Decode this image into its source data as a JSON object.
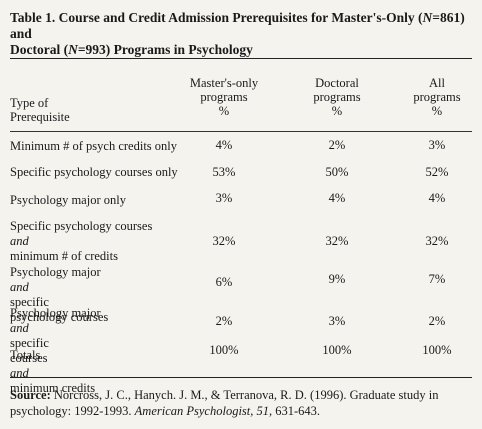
{
  "title": {
    "part1": "Table 1. Course and Credit Admission Prerequisites for Master's-Only (",
    "n_var1": "N",
    "part2": "=861) and",
    "part3": "Doctoral (",
    "n_var2": "N",
    "part4": "=993) Programs in Psychology"
  },
  "header": {
    "type_line1": "Type of",
    "type_line2": "Prerequisite",
    "col1": [
      "Master's-only",
      "programs",
      "%"
    ],
    "col2": [
      "Doctoral",
      "programs",
      "%"
    ],
    "col3": [
      "All",
      "programs",
      "%"
    ]
  },
  "rows": [
    {
      "label1": "Minimum # of psych credits only",
      "v1": "4%",
      "v2": "2%",
      "v3": "3%"
    },
    {
      "label1": "Specific psychology courses only",
      "v1": "53%",
      "v2": "50%",
      "v3": "52%"
    },
    {
      "label1": "Psychology major only",
      "v1": "3%",
      "v2": "4%",
      "v3": "4%"
    },
    {
      "label1a": "Specific psychology courses ",
      "label1b": "and",
      "label2": "minimum # of credits",
      "v1": "32%",
      "v2": "32%",
      "v3": "32%"
    },
    {
      "label1a": "Psychology major ",
      "label1b": "and",
      "label1c": " specific",
      "label2": "psychology courses",
      "v1": "6%",
      "v2": "9%",
      "v3": "7%"
    },
    {
      "label1a": "Psychology major ",
      "label1b": "and",
      "label1c": " specific",
      "label2a": "courses ",
      "label2b": "and",
      "label2c": " minimum credits",
      "v1": "2%",
      "v2": "3%",
      "v3": "2%"
    },
    {
      "label1": "Totals",
      "v1": "100%",
      "v2": "100%",
      "v3": "100%"
    }
  ],
  "source": {
    "label": "Source:",
    "text1": " Norcross, J. C., Hanych. J. M., & Terranova, R. D. (1996). Graduate study in",
    "text2a": "psychology: 1992-1993. ",
    "journal": "American Psychologist, 51,",
    "text2b": " 631-643."
  }
}
